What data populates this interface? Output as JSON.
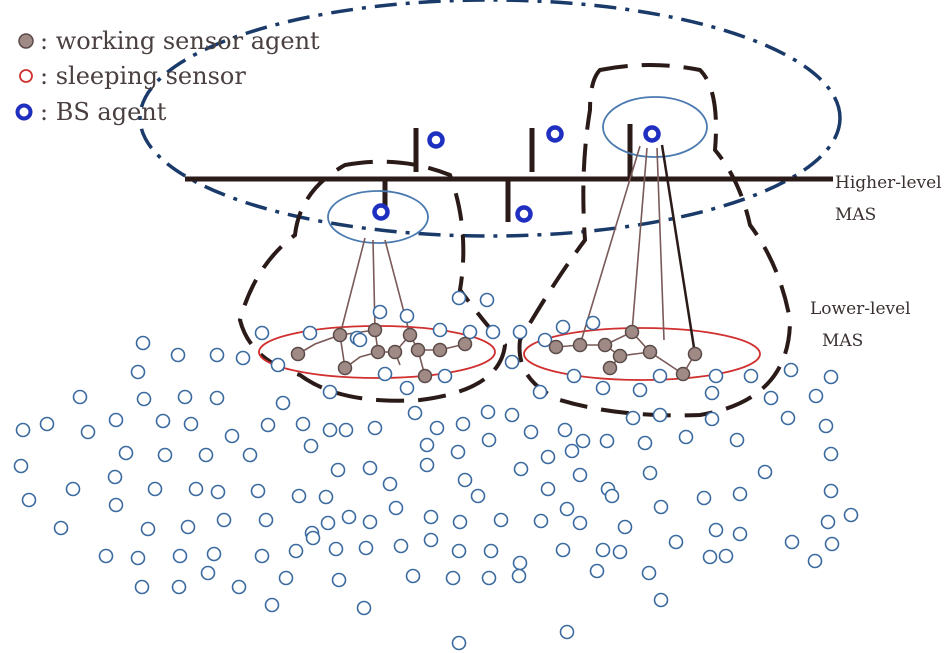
{
  "legend": {
    "working_label": ": working sensor agent",
    "sleeping_label": ": sleeping sensor",
    "bs_label": ": BS agent"
  },
  "labels": {
    "higher_line1": "Higher-level",
    "higher_line2": "MAS",
    "lower_line1": "Lower-level",
    "lower_line2": "MAS"
  },
  "colors": {
    "working_fill": "#a08a86",
    "working_stroke": "#5a4a48",
    "sleeping_stroke": "#3a6aa0",
    "bs_stroke": "#1f2fc0",
    "bs_inner": "#ffffff",
    "bus": "#2a1a18",
    "cluster_ellipse": "#d03030",
    "bs_ellipse": "#4a7ab0",
    "higher_ellipse": "#1a3a6a",
    "link": "#7a5a58"
  }
}
